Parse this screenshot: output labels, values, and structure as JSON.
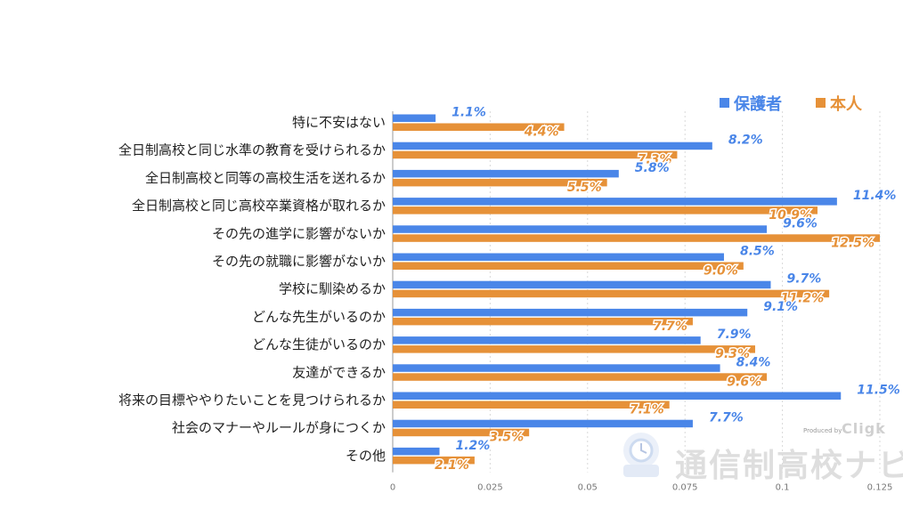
{
  "chart_data": {
    "type": "bar",
    "orientation": "horizontal",
    "categories": [
      "特に不安はない",
      "全日制高校と同じ水準の教育を受けられるか",
      "全日制高校と同等の高校生活を送れるか",
      "全日制高校と同じ高校卒業資格が取れるか",
      "その先の進学に影響がないか",
      "その先の就職に影響がないか",
      "学校に馴染めるか",
      "どんな先生がいるのか",
      "どんな生徒がいるのか",
      "友達ができるか",
      "将来の目標ややりたいことを見つけられるか",
      "社会のマナーやルールが身につくか",
      "その他"
    ],
    "series": [
      {
        "name": "保護者",
        "color": "#4a86e8",
        "values": [
          0.011,
          0.082,
          0.058,
          0.114,
          0.096,
          0.085,
          0.097,
          0.091,
          0.079,
          0.084,
          0.115,
          0.077,
          0.012
        ],
        "labels": [
          "1.1%",
          "8.2%",
          "5.8%",
          "11.4%",
          "9.6%",
          "8.5%",
          "9.7%",
          "9.1%",
          "7.9%",
          "8.4%",
          "11.5%",
          "7.7%",
          "1.2%"
        ]
      },
      {
        "name": "本人",
        "color": "#e69138",
        "values": [
          0.044,
          0.073,
          0.055,
          0.109,
          0.125,
          0.09,
          0.112,
          0.077,
          0.093,
          0.096,
          0.071,
          0.035,
          0.021
        ],
        "labels": [
          "4.4%",
          "7.3%",
          "5.5%",
          "10.9%",
          "12.5%",
          "9.0%",
          "11.2%",
          "7.7%",
          "9.3%",
          "9.6%",
          "7.1%",
          "3.5%",
          "2.1%"
        ]
      }
    ],
    "xlim": [
      0,
      0.125
    ],
    "xticks": [
      0,
      0.025,
      0.05,
      0.075,
      0.1,
      0.125
    ],
    "xtick_labels": [
      "0",
      "0.025",
      "0.05",
      "0.075",
      "0.1",
      "0.125"
    ],
    "grid": true,
    "legend_position": "top-right"
  },
  "watermark": {
    "produced_by": "Produced by",
    "brand": "Cligk",
    "site_name": "通信制高校ナビ"
  }
}
